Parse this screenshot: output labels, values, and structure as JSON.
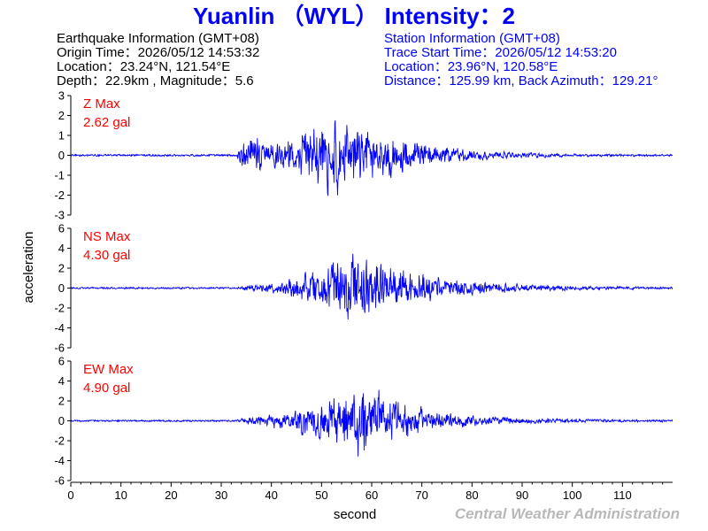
{
  "title": "Yuanlin （WYL） Intensity：2",
  "earthquake_info": {
    "heading": "Earthquake Information  (GMT+08)",
    "origin_time": "Origin Time：2026/05/12 14:53:32",
    "location": "Location：23.24°N, 121.54°E",
    "depth_magnitude": "Depth：22.9km , Magnitude：5.6"
  },
  "station_info": {
    "heading": "Station Information  (GMT+08)",
    "trace_start": "Trace Start Time：2026/05/12 14:53:20",
    "location": "Location：23.96°N, 120.58°E",
    "distance": "Distance：125.99 km, Back Azimuth：129.21°"
  },
  "credit": "Central Weather Administration",
  "colors": {
    "trace": "#0000ff",
    "title": "#0000ff",
    "max_label": "#ff0000",
    "credit": "#b8b8b8"
  },
  "chart_data": {
    "type": "line",
    "xlabel": "second",
    "ylabel": "acceleration",
    "xlim": [
      0,
      120
    ],
    "x_ticks": [
      0,
      10,
      20,
      30,
      40,
      50,
      60,
      70,
      80,
      90,
      100,
      110
    ],
    "grid": false,
    "panels": [
      {
        "component": "Z",
        "max_label": "Z Max",
        "max_value": "2.62 gal",
        "max_abs": 2.62,
        "ylim": [
          -3,
          3
        ],
        "y_ticks": [
          3,
          2,
          1,
          0,
          -1,
          -2,
          -3
        ],
        "envelope": [
          [
            0,
            0.06
          ],
          [
            33,
            0.06
          ],
          [
            34,
            0.9
          ],
          [
            36,
            1.4
          ],
          [
            40,
            1.0
          ],
          [
            45,
            1.2
          ],
          [
            50,
            2.2
          ],
          [
            53,
            2.62
          ],
          [
            56,
            2.0
          ],
          [
            60,
            1.7
          ],
          [
            65,
            1.2
          ],
          [
            70,
            0.8
          ],
          [
            75,
            0.55
          ],
          [
            80,
            0.35
          ],
          [
            90,
            0.18
          ],
          [
            100,
            0.1
          ],
          [
            120,
            0.06
          ]
        ]
      },
      {
        "component": "NS",
        "max_label": "NS Max",
        "max_value": "4.30 gal",
        "max_abs": 4.3,
        "ylim": [
          -6,
          6
        ],
        "y_ticks": [
          6,
          4,
          2,
          0,
          -2,
          -4,
          -6
        ],
        "envelope": [
          [
            0,
            0.1
          ],
          [
            33,
            0.1
          ],
          [
            35,
            0.35
          ],
          [
            40,
            0.7
          ],
          [
            45,
            1.3
          ],
          [
            50,
            2.5
          ],
          [
            55,
            4.3
          ],
          [
            60,
            3.6
          ],
          [
            65,
            2.7
          ],
          [
            70,
            2.0
          ],
          [
            75,
            1.3
          ],
          [
            80,
            0.9
          ],
          [
            90,
            0.5
          ],
          [
            100,
            0.3
          ],
          [
            110,
            0.2
          ],
          [
            120,
            0.15
          ]
        ]
      },
      {
        "component": "EW",
        "max_label": "EW Max",
        "max_value": "4.90 gal",
        "max_abs": 4.9,
        "ylim": [
          -6,
          6
        ],
        "y_ticks": [
          6,
          4,
          2,
          0,
          -2,
          -4,
          -6
        ],
        "envelope": [
          [
            0,
            0.1
          ],
          [
            33,
            0.1
          ],
          [
            35,
            0.5
          ],
          [
            40,
            0.9
          ],
          [
            45,
            1.4
          ],
          [
            50,
            3.0
          ],
          [
            55,
            3.6
          ],
          [
            58,
            4.9
          ],
          [
            62,
            3.5
          ],
          [
            66,
            2.3
          ],
          [
            70,
            1.7
          ],
          [
            75,
            1.1
          ],
          [
            80,
            0.7
          ],
          [
            90,
            0.4
          ],
          [
            100,
            0.25
          ],
          [
            110,
            0.18
          ],
          [
            120,
            0.15
          ]
        ]
      }
    ]
  }
}
